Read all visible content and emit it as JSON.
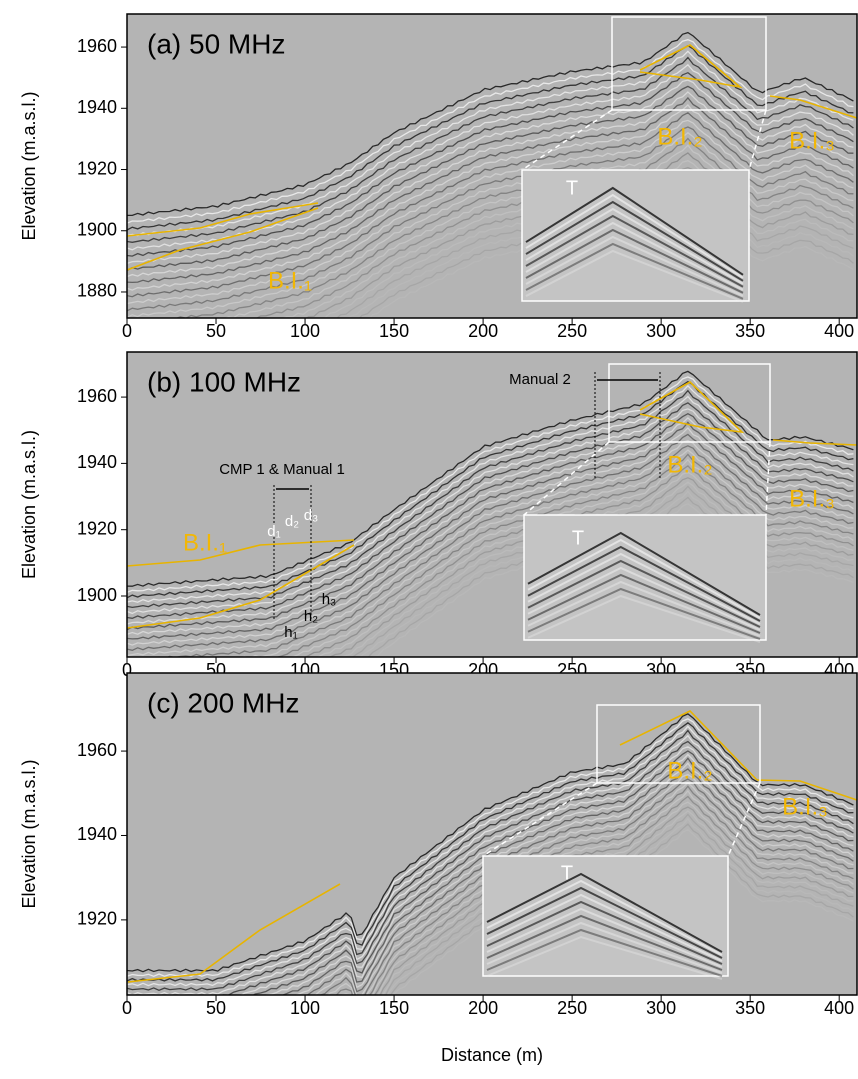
{
  "chart_data": [
    {
      "type": "radargram",
      "title": "(a) 50 MHz",
      "ylabel": "Elevation (m.a.s.l.)",
      "xlim": [
        0,
        410
      ],
      "ylim": [
        1871.5,
        1970.8
      ],
      "xticks": [
        0,
        50,
        100,
        150,
        200,
        250,
        300,
        350,
        400
      ],
      "yticks": [
        1880,
        1900,
        1920,
        1940,
        1960
      ],
      "annotations": [
        "B.I.₁",
        "B.I.₂",
        "B.I.₃",
        "T"
      ]
    },
    {
      "type": "radargram",
      "title": "(b) 100 MHz",
      "ylabel": "Elevation (m.a.s.l.)",
      "xlim": [
        0,
        410
      ],
      "ylim": [
        1881.6,
        1973.6
      ],
      "xticks": [
        0,
        50,
        100,
        150,
        200,
        250,
        300,
        350,
        400
      ],
      "yticks": [
        1900,
        1920,
        1940,
        1960
      ],
      "annotations": [
        "B.I.₁",
        "B.I.₂",
        "B.I.₃",
        "T",
        "Manual 2",
        "CMP 1 & Manual 1",
        "d₁",
        "d₂",
        "d₃",
        "h₁",
        "h₂",
        "h₃"
      ]
    },
    {
      "type": "radargram",
      "title": "(c) 200 MHz",
      "ylabel": "Elevation (m.a.s.l.)",
      "xlabel": "Distance (m)",
      "xlim": [
        0,
        410
      ],
      "ylim": [
        1902.2,
        1978.5
      ],
      "xticks": [
        0,
        50,
        100,
        150,
        200,
        250,
        300,
        350,
        400
      ],
      "yticks": [
        1920,
        1940,
        1960
      ],
      "annotations": [
        "B.I.₂",
        "B.I.₃",
        "T"
      ]
    }
  ]
}
